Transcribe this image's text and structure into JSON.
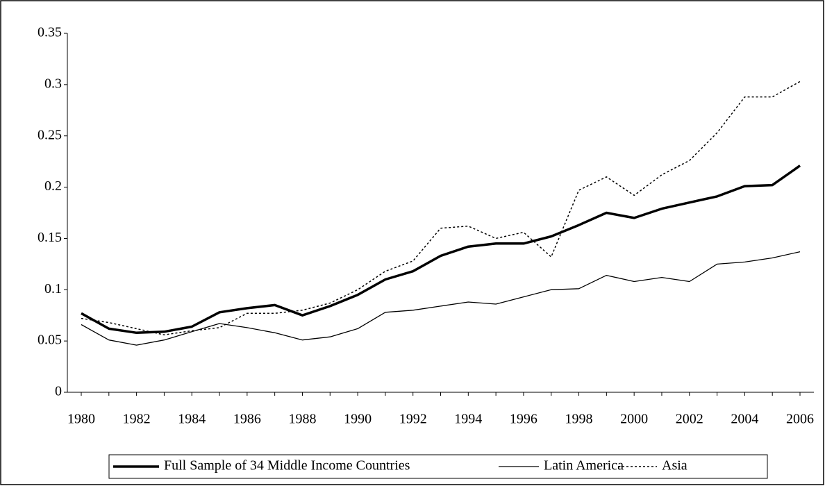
{
  "chart_data": {
    "type": "line",
    "x": [
      1980,
      1981,
      1982,
      1983,
      1984,
      1985,
      1986,
      1987,
      1988,
      1989,
      1990,
      1991,
      1992,
      1993,
      1994,
      1995,
      1996,
      1997,
      1998,
      1999,
      2000,
      2001,
      2002,
      2003,
      2004,
      2005,
      2006
    ],
    "xlim": [
      1980,
      2006
    ],
    "xticks": [
      1980,
      1982,
      1984,
      1986,
      1988,
      1990,
      1992,
      1994,
      1996,
      1998,
      2000,
      2002,
      2004,
      2006
    ],
    "ylim": [
      0,
      0.35
    ],
    "yticks": [
      0,
      0.05,
      0.1,
      0.15,
      0.2,
      0.25,
      0.3,
      0.35
    ],
    "legend": "bottom",
    "series": [
      {
        "name": "Full Sample of 34 Middle Income Countries",
        "color": "#000000",
        "line_width": 3.5,
        "line_style": "solid",
        "values": [
          0.077,
          0.062,
          0.058,
          0.059,
          0.064,
          0.078,
          0.082,
          0.085,
          0.075,
          0.084,
          0.095,
          0.11,
          0.118,
          0.133,
          0.142,
          0.145,
          0.145,
          0.152,
          0.163,
          0.175,
          0.17,
          0.179,
          0.185,
          0.191,
          0.201,
          0.202,
          0.221
        ]
      },
      {
        "name": "Latin America",
        "color": "#000000",
        "line_width": 1.3,
        "line_style": "solid",
        "values": [
          0.066,
          0.051,
          0.046,
          0.051,
          0.059,
          0.067,
          0.063,
          0.058,
          0.051,
          0.054,
          0.062,
          0.078,
          0.08,
          0.084,
          0.088,
          0.086,
          0.093,
          0.1,
          0.101,
          0.114,
          0.108,
          0.112,
          0.108,
          0.125,
          0.127,
          0.131,
          0.137
        ]
      },
      {
        "name": "Asia",
        "color": "#000000",
        "line_width": 1.5,
        "line_style": "dotted",
        "values": [
          0.072,
          0.068,
          0.062,
          0.056,
          0.06,
          0.063,
          0.077,
          0.077,
          0.08,
          0.087,
          0.1,
          0.118,
          0.128,
          0.16,
          0.162,
          0.15,
          0.156,
          0.132,
          0.197,
          0.21,
          0.192,
          0.212,
          0.226,
          0.253,
          0.288,
          0.288,
          0.303
        ]
      }
    ]
  }
}
